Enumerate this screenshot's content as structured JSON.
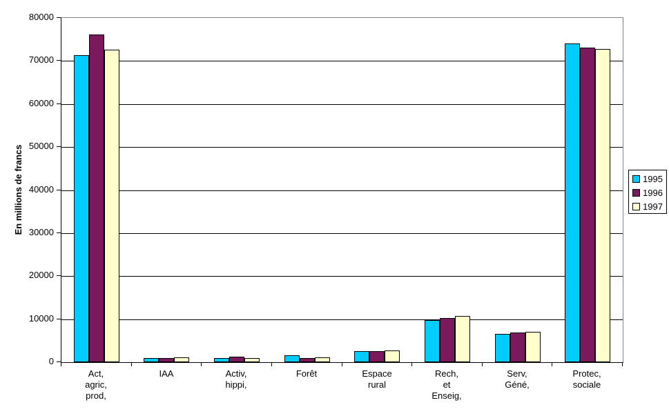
{
  "chart_data": {
    "type": "bar",
    "title": "",
    "ylabel": "En millions de francs",
    "xlabel": "",
    "ylim": [
      0,
      80000
    ],
    "ytick_step": 10000,
    "ytick_labels": [
      "0",
      "10000",
      "20000",
      "30000",
      "40000",
      "50000",
      "60000",
      "70000",
      "80000"
    ],
    "grid": true,
    "legend_position": "right",
    "categories": [
      "Act, agric, prod,",
      "IAA",
      "Activ, hippi,",
      "Forêt",
      "Espace rural",
      "Rech, et Enseig,",
      "Serv, Géné,",
      "Protec, sociale"
    ],
    "category_lines": [
      [
        "Act,",
        "agric,",
        "prod,"
      ],
      [
        "IAA"
      ],
      [
        "Activ,",
        "hippi,"
      ],
      [
        "Forêt"
      ],
      [
        "Espace",
        "rural"
      ],
      [
        "Rech,",
        "et",
        "Enseig,"
      ],
      [
        "Serv,",
        "Géné,"
      ],
      [
        "Protec,",
        "sociale"
      ]
    ],
    "series": [
      {
        "name": "1995",
        "color": "#00CCFF",
        "values": [
          71300,
          1000,
          1000,
          1600,
          2600,
          9700,
          6600,
          74100
        ]
      },
      {
        "name": "1996",
        "color": "#7A1A5C",
        "values": [
          76200,
          900,
          1300,
          1000,
          2500,
          10200,
          6900,
          73100
        ]
      },
      {
        "name": "1997",
        "color": "#FFFFCC",
        "values": [
          72600,
          1200,
          900,
          1100,
          2700,
          10700,
          7100,
          72800
        ]
      }
    ]
  },
  "colors": {
    "background": "#FFFFFF",
    "axis": "#000000",
    "gridline": "#000000",
    "plot_border": "#848284",
    "legend_border": "#000000"
  }
}
